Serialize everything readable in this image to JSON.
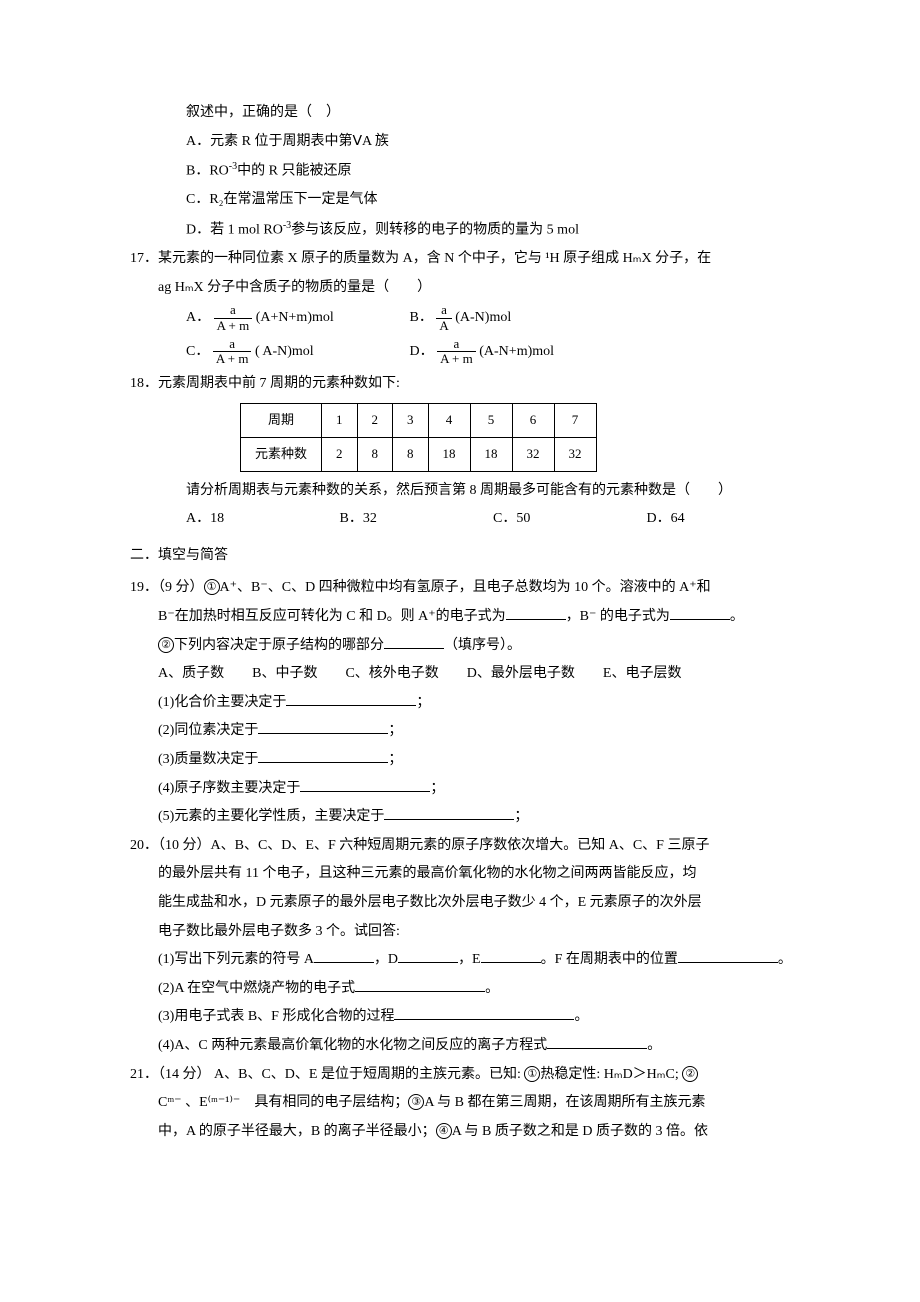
{
  "q16": {
    "stem_cont": "叙述中，正确的是（　）",
    "optA": "A．元素 R 位于周期表中第ⅤA 族",
    "optB_pre": "B．RO",
    "optB_sup": "-3",
    "optB_post": "中的 R 只能被还原",
    "optC": "C．R₂在常温常压下一定是气体",
    "optD_pre": "D．若 1 mol RO",
    "optD_sup": "-3",
    "optD_post": "参与该反应，则转移的电子的物质的量为 5 mol"
  },
  "q17": {
    "stem1": "17．某元素的一种同位素 X 原子的质量数为 A，含 N 个中子，它与 ¹H 原子组成 HₘX 分子，在",
    "stem2": "ag HₘX 分子中含质子的物质的量是（　　）",
    "A": {
      "label": "A．",
      "num": "a",
      "den": "A + m",
      "tail": "(A+N+m)mol"
    },
    "B": {
      "label": "B．",
      "num": "a",
      "den": "A",
      "tail": "(A-N)mol"
    },
    "C": {
      "label": "C．",
      "num": "a",
      "den": "A + m",
      "tail": "( A-N)mol"
    },
    "D": {
      "label": "D．",
      "num": "a",
      "den": "A + m",
      "tail": " (A-N+m)mol"
    }
  },
  "q18": {
    "stem": "18．元素周期表中前 7 周期的元素种数如下:",
    "header": [
      "周期",
      "1",
      "2",
      "3",
      "4",
      "5",
      "6",
      "7"
    ],
    "row": [
      "元素种数",
      "2",
      "8",
      "8",
      "18",
      "18",
      "32",
      "32"
    ],
    "tail": "请分析周期表与元素种数的关系，然后预言第 8 周期最多可能含有的元素种数是（　　）",
    "opts": {
      "A": "A．18",
      "B": "B．32",
      "C": "C．50",
      "D": "D．64"
    }
  },
  "section2": "二．填空与简答",
  "q19": {
    "line1_pre": "19．（9 分）",
    "c1": "①",
    "line1_mid": "A⁺、B⁻、C、D 四种微粒中均有氢原子，且电子总数均为 10 个。溶液中的 A⁺和",
    "line2_pre": "B⁻在加热时相互反应可转化为 C 和 D。则 A⁺的电子式为",
    "line2_mid": "，B⁻ 的电子式为",
    "line2_post": "。",
    "c2": "②",
    "line3": "下列内容决定于原子结构的哪部分",
    "line3_post": "（填序号）。",
    "choices": "A、质子数　　B、中子数　　C、核外电子数　　D、最外层电子数　　E、电子层数",
    "sub1": "(1)化合价主要决定于",
    "sub2": "(2)同位素决定于",
    "sub3": "(3)质量数决定于",
    "sub4": "(4)原子序数主要决定于",
    "sub5": "(5)元素的主要化学性质，主要决定于",
    "semi": "；"
  },
  "q20": {
    "line1": "20．（10 分）A、B、C、D、E、F 六种短周期元素的原子序数依次增大。已知 A、C、F 三原子",
    "line2": "的最外层共有 11 个电子，且这种三元素的最高价氧化物的水化物之间两两皆能反应，均",
    "line3": "能生成盐和水，D 元素原子的最外层电子数比次外层电子数少 4 个，E 元素原子的次外层",
    "line4": "电子数比最外层电子数多 3 个。试回答:",
    "sub1_a": "(1)写出下列元素的符号 A",
    "sub1_b": "，D",
    "sub1_c": "，E",
    "sub1_d": "。F 在周期表中的位置",
    "sub1_e": "。",
    "sub2": "(2)A 在空气中燃烧产物的电子式",
    "sub2_post": "。",
    "sub3": "(3)用电子式表 B、F 形成化合物的过程",
    "sub3_post": "。",
    "sub4": "(4)A、C 两种元素最高价氧化物的水化物之间反应的离子方程式",
    "sub4_post": "。"
  },
  "q21": {
    "line1_pre": "21．（14 分） A、B、C、D、E 是位于短周期的主族元素。已知: ",
    "c1": "①",
    "line1_mid": "热稳定性: HₘD＞HₘC; ",
    "c2": "②",
    "line2_pre": "Cᵐ⁻ 、E⁽ᵐ⁻¹⁾⁻　具有相同的电子层结构；",
    "c3": "③",
    "line2_mid": "A 与 B 都在第三周期，在该周期所有主族元素",
    "line3_pre": "中，A 的原子半径最大，B 的离子半径最小；",
    "c4": "④",
    "line3_mid": "A 与 B 质子数之和是 D 质子数的 3 倍。依"
  }
}
